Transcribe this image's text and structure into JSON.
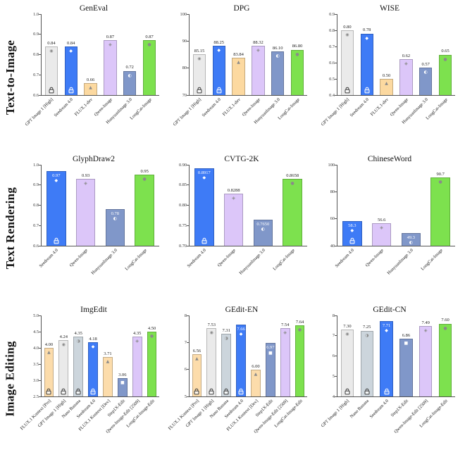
{
  "page": {
    "background": "#ffffff"
  },
  "figure": {
    "rows": [
      {
        "label": "Text-to-Image"
      },
      {
        "label": "Text Rendering"
      },
      {
        "label": "Image Editing"
      }
    ]
  },
  "models": {
    "GPT Image 1 [High]": {
      "color": "#eaeaea",
      "icon": "openai-logo-icon",
      "glyph": "◉"
    },
    "Seedream 4.0": {
      "color": "#3e7bf6",
      "icon": "seedream-logo-icon",
      "glyph": "◆"
    },
    "FLUX.1-dev": {
      "color": "#fcd9a0",
      "icon": "flux-logo-icon",
      "glyph": "▲"
    },
    "Qwen-Image": {
      "color": "#dcc6f9",
      "icon": "qwen-logo-icon",
      "glyph": "◈"
    },
    "HunyuanImage 3.0": {
      "color": "#8097c9",
      "icon": "hunyuan-logo-icon",
      "glyph": "◐"
    },
    "LongCat-Image": {
      "color": "#7de14e",
      "icon": "longcat-logo-icon",
      "glyph": "●"
    },
    "FLUX.1 Kontext [Pro]": {
      "color": "#fcdcab",
      "icon": "flux-logo-icon",
      "glyph": "▲"
    },
    "Nano Banana": {
      "color": "#ccd5dc",
      "icon": "nano-banana-logo-icon",
      "glyph": "◑"
    },
    "FLUX.1 Kontext [Dev]": {
      "color": "#fcdcab",
      "icon": "flux-logo-icon",
      "glyph": "▲"
    },
    "Step1X-Edit": {
      "color": "#8097c9",
      "icon": "step1x-logo-icon",
      "glyph": "■"
    },
    "Qwen-Image-Edit [2509]": {
      "color": "#dcc6f9",
      "icon": "qwen-logo-icon",
      "glyph": "◈"
    },
    "LongCat-Image-Edit": {
      "color": "#7de14e",
      "icon": "longcat-logo-icon",
      "glyph": "●"
    }
  },
  "dark_bar_colors": [
    "#3e7bf6",
    "#8097c9"
  ],
  "chart_data": [
    {
      "type": "bar",
      "row": 0,
      "title": "GenEval",
      "ylim": [
        0.6,
        1.0
      ],
      "yticks": [
        "1.0",
        "0.9",
        "0.8",
        "0.7",
        "0.6"
      ],
      "categories": [
        "GPT Image 1 [High]",
        "Seedream 4.0",
        "FLUX.1-dev",
        "Qwen-Image",
        "HunyuanImage 3.0",
        "LongCat-Image"
      ],
      "values": [
        0.84,
        0.84,
        0.66,
        0.87,
        0.72,
        0.87
      ],
      "labels": [
        "0.84",
        "0.84",
        "0.66",
        "0.87",
        "0.72",
        "0.87"
      ],
      "locks": [
        true,
        true,
        false,
        false,
        false,
        false
      ],
      "label_inside": [
        false,
        false,
        false,
        false,
        false,
        false
      ]
    },
    {
      "type": "bar",
      "row": 0,
      "title": "DPG",
      "ylim": [
        70,
        100
      ],
      "yticks": [
        "100",
        "90",
        "80",
        "70"
      ],
      "categories": [
        "GPT Image 1 [High]",
        "Seedream 4.0",
        "FLUX.1-dev",
        "Qwen-Image",
        "HunyuanImage 3.0",
        "LongCat-Image"
      ],
      "values": [
        85.15,
        88.25,
        83.84,
        88.32,
        86.1,
        86.8
      ],
      "labels": [
        "85.15",
        "88.25",
        "83.84",
        "88.32",
        "86.10",
        "86.80"
      ],
      "locks": [
        true,
        true,
        false,
        false,
        false,
        false
      ],
      "label_inside": [
        false,
        false,
        false,
        false,
        false,
        false
      ]
    },
    {
      "type": "bar",
      "row": 0,
      "title": "WISE",
      "ylim": [
        0.4,
        0.9
      ],
      "yticks": [
        "0.9",
        "0.8",
        "0.7",
        "0.6",
        "0.5",
        "0.4"
      ],
      "categories": [
        "GPT Image 1 [High]",
        "Seedream 4.0",
        "FLUX.1-dev",
        "Qwen-Image",
        "HunyuanImage 3.0",
        "LongCat-Image"
      ],
      "values": [
        0.8,
        0.78,
        0.5,
        0.62,
        0.57,
        0.65
      ],
      "labels": [
        "0.80",
        "0.78",
        "0.50",
        "0.62",
        "0.57",
        "0.65"
      ],
      "locks": [
        true,
        true,
        false,
        false,
        false,
        false
      ],
      "label_inside": [
        false,
        false,
        false,
        false,
        false,
        false
      ]
    },
    {
      "type": "bar",
      "row": 1,
      "title": "GlyphDraw2",
      "ylim": [
        0.6,
        1.0
      ],
      "yticks": [
        "1.0",
        "0.9",
        "0.8",
        "0.7",
        "0.6"
      ],
      "categories": [
        "Seedream 4.0",
        "Qwen-Image",
        "HunyuanImage 3.0",
        "LongCat-Image"
      ],
      "values": [
        0.97,
        0.93,
        0.78,
        0.95
      ],
      "labels": [
        "0.97",
        "0.93",
        "0.78",
        "0.95"
      ],
      "locks": [
        true,
        false,
        false,
        false
      ],
      "label_inside": [
        true,
        false,
        true,
        false
      ]
    },
    {
      "type": "bar",
      "row": 1,
      "title": "CVTG-2K",
      "ylim": [
        0.7,
        0.9
      ],
      "yticks": [
        "0.90",
        "0.85",
        "0.80",
        "0.75",
        "0.70"
      ],
      "categories": [
        "Seedream 4.0",
        "Qwen-Image",
        "HunyuanImage 3.0",
        "LongCat-Image"
      ],
      "values": [
        0.8917,
        0.8288,
        0.765,
        0.8658
      ],
      "labels": [
        "0.8917",
        "0.8288",
        "0.7650",
        "0.8658"
      ],
      "locks": [
        true,
        false,
        false,
        false
      ],
      "label_inside": [
        true,
        false,
        true,
        false
      ]
    },
    {
      "type": "bar",
      "row": 1,
      "title": "ChineseWord",
      "ylim": [
        40,
        100
      ],
      "yticks": [
        "100",
        "80",
        "60",
        "40"
      ],
      "categories": [
        "Seedream 4.0",
        "Qwen-Image",
        "HunyuanImage 3.0",
        "LongCat-Image"
      ],
      "values": [
        58.3,
        56.6,
        49.3,
        90.7
      ],
      "labels": [
        "58.3",
        "56.6",
        "49.3",
        "90.7"
      ],
      "locks": [
        true,
        false,
        false,
        false
      ],
      "label_inside": [
        true,
        false,
        true,
        false
      ]
    },
    {
      "type": "bar",
      "row": 2,
      "title": "ImgEdit",
      "ylim": [
        2.5,
        5.0
      ],
      "yticks": [
        "5.0",
        "4.5",
        "4.0",
        "3.5",
        "3.0",
        "2.5"
      ],
      "categories": [
        "FLUX.1 Kontext [Pro]",
        "GPT Image 1 [High]",
        "Nano Banana",
        "Seedream 4.0",
        "FLUX.1 Kontext [Dev]",
        "Step1X-Edit",
        "Qwen-Image-Edit [2509]",
        "LongCat-Image-Edit"
      ],
      "values": [
        4.0,
        4.24,
        4.35,
        4.18,
        3.71,
        3.06,
        4.35,
        4.5
      ],
      "labels": [
        "4.00",
        "4.24",
        "4.35",
        "4.18",
        "3.71",
        "3.06",
        "4.35",
        "4.50"
      ],
      "locks": [
        true,
        true,
        true,
        true,
        false,
        false,
        false,
        false
      ],
      "label_inside": [
        false,
        false,
        false,
        false,
        false,
        false,
        false,
        false
      ]
    },
    {
      "type": "bar",
      "row": 2,
      "title": "GEdit-EN",
      "ylim": [
        5,
        8
      ],
      "yticks": [
        "8",
        "7",
        "6",
        "5"
      ],
      "categories": [
        "FLUX.1 Kontext [Pro]",
        "GPT Image 1 [High]",
        "Nano Banana",
        "Seedream 4.0",
        "FLUX.1 Kontext [Dev]",
        "Step1X-Edit",
        "Qwen-Image-Edit [2509]",
        "LongCat-Image-Edit"
      ],
      "values": [
        6.56,
        7.53,
        7.31,
        7.66,
        6.0,
        6.97,
        7.54,
        7.64
      ],
      "labels": [
        "6.56",
        "7.53",
        "7.31",
        "7.66",
        "6.00",
        "6.97",
        "7.54",
        "7.64"
      ],
      "locks": [
        true,
        true,
        true,
        true,
        false,
        false,
        false,
        false
      ],
      "label_inside": [
        false,
        false,
        false,
        true,
        false,
        true,
        false,
        false
      ]
    },
    {
      "type": "bar",
      "row": 2,
      "title": "GEdit-CN",
      "ylim": [
        4,
        8
      ],
      "yticks": [
        "8",
        "7",
        "6",
        "5",
        "4"
      ],
      "categories": [
        "GPT Image 1 [High]",
        "Nano Banana",
        "Seedream 4.0",
        "Step1X-Edit",
        "Qwen-Image-Edit [2509]",
        "LongCat-Image-Edit"
      ],
      "values": [
        7.3,
        7.25,
        7.71,
        6.86,
        7.49,
        7.6
      ],
      "labels": [
        "7.30",
        "7.25",
        "7.71",
        "6.86",
        "7.49",
        "7.60"
      ],
      "locks": [
        true,
        true,
        true,
        false,
        false,
        false
      ],
      "label_inside": [
        false,
        false,
        true,
        false,
        false,
        false
      ]
    }
  ]
}
